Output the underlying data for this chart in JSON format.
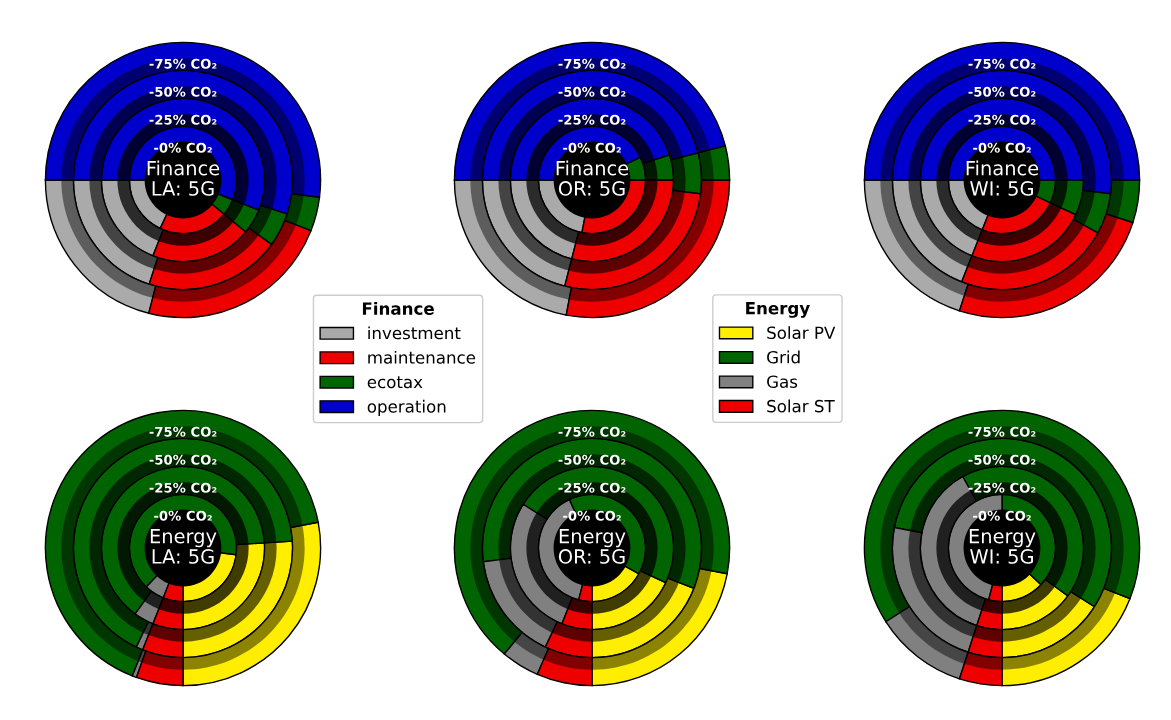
{
  "chart_data": [
    {
      "type": "donut",
      "title": "Finance\nLA: 5G",
      "categories": [
        "investment",
        "maintenance",
        "ecotax",
        "operation"
      ],
      "colors": [
        "#aaaaaa",
        "#ee0000",
        "#006400",
        "#0000cc"
      ],
      "legend": "bottom right",
      "legend_title": "Finance",
      "series": [
        {
          "name": "-0% CO₂",
          "values": [
            18,
            21,
            5,
            56
          ]
        },
        {
          "name": "-25% CO₂",
          "values": [
            19,
            20,
            5,
            56
          ]
        },
        {
          "name": "-50% CO₂",
          "values": [
            20,
            20,
            5,
            55
          ]
        },
        {
          "name": "-75% CO₂",
          "values": [
            21,
            23,
            4,
            52
          ]
        }
      ]
    },
    {
      "type": "donut",
      "title": "Finance\nOR: 5G",
      "categories": [
        null,
        null,
        null,
        null
      ],
      "colors": [
        "#aaaaaa",
        "#ee0000",
        "#006400",
        "#0000cc"
      ],
      "series": [
        {
          "name": "-0% CO₂",
          "values": [
            22,
            28,
            7,
            43
          ]
        },
        {
          "name": "-25% CO₂",
          "values": [
            21,
            29,
            5,
            45
          ]
        },
        {
          "name": "-50% CO₂",
          "values": [
            21,
            27,
            6,
            46
          ]
        },
        {
          "name": "-75% CO₂",
          "values": [
            22,
            28,
            4,
            46
          ]
        }
      ]
    },
    {
      "type": "donut",
      "title": "Finance\nWI: 5G",
      "categories": [
        null,
        null,
        null,
        null
      ],
      "colors": [
        "#aaaaaa",
        "#ee0000",
        "#006400",
        "#0000cc"
      ],
      "series": [
        {
          "name": "-0% CO₂",
          "values": [
            19,
            24,
            7,
            50
          ]
        },
        {
          "name": "-25% CO₂",
          "values": [
            19,
            24,
            7,
            50
          ]
        },
        {
          "name": "-50% CO₂",
          "values": [
            19,
            23,
            6,
            52
          ]
        },
        {
          "name": "-75% CO₂",
          "values": [
            20,
            25,
            5,
            50
          ]
        }
      ]
    },
    {
      "type": "donut",
      "title": "Energy\nLA: 5G",
      "categories": [
        "Solar PV",
        "Grid",
        "Gas",
        "Solar ST"
      ],
      "colors": [
        "#ffee00",
        "#006400",
        "#808080",
        "#ee0000"
      ],
      "legend": "top right",
      "legend_title": "Energy",
      "series": [
        {
          "name": "-0% CO₂",
          "values": [
            23,
            65,
            6,
            6
          ]
        },
        {
          "name": "-25% CO₂",
          "values": [
            26,
            64,
            4,
            6
          ]
        },
        {
          "name": "-50% CO₂",
          "values": [
            26,
            67,
            1,
            6
          ]
        },
        {
          "name": "-75% CO₂",
          "values": [
            28,
            66,
            0.5,
            5.5
          ]
        }
      ]
    },
    {
      "type": "donut",
      "title": "Energy\nOR: 5G",
      "categories": [
        null,
        null,
        null,
        null
      ],
      "colors": [
        "#ffee00",
        "#006400",
        "#808080",
        "#ee0000"
      ],
      "series": [
        {
          "name": "-0% CO₂",
          "values": [
            17,
            40,
            39,
            4
          ]
        },
        {
          "name": "-25% CO₂",
          "values": [
            18,
            48,
            28,
            6
          ]
        },
        {
          "name": "-50% CO₂",
          "values": [
            19,
            58,
            16,
            7
          ]
        },
        {
          "name": "-75% CO₂",
          "values": [
            22,
            67,
            4.5,
            6.5
          ]
        }
      ]
    },
    {
      "type": "donut",
      "title": "Energy\nWI: 5G",
      "categories": [
        null,
        null,
        null,
        null
      ],
      "colors": [
        "#ffee00",
        "#006400",
        "#808080",
        "#ee0000"
      ],
      "series": [
        {
          "name": "-0% CO₂",
          "values": [
            13,
            37,
            46,
            4
          ]
        },
        {
          "name": "-25% CO₂",
          "values": [
            15,
            43,
            37,
            5
          ]
        },
        {
          "name": "-50% CO₂",
          "values": [
            16,
            56,
            23,
            5
          ]
        },
        {
          "name": "-75% CO₂",
          "values": [
            19,
            65,
            11,
            5
          ]
        }
      ]
    }
  ]
}
